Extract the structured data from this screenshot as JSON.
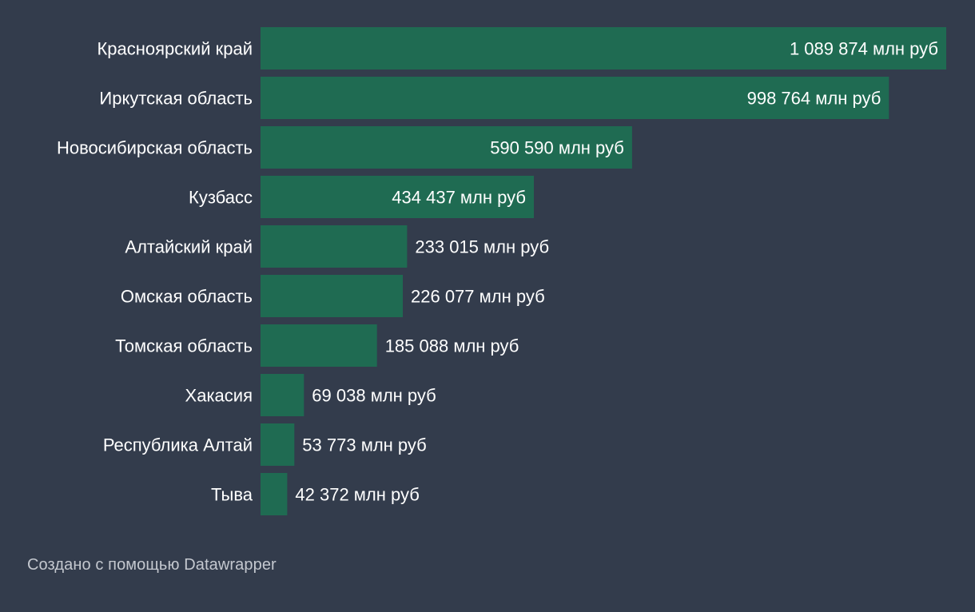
{
  "chart_data": {
    "type": "bar",
    "orientation": "horizontal",
    "categories": [
      "Красноярский край",
      "Иркутская область",
      "Новосибирская область",
      "Кузбасс",
      "Алтайский край",
      "Омская область",
      "Томская область",
      "Хакасия",
      "Республика Алтай",
      "Тыва"
    ],
    "values": [
      1089874,
      998764,
      590590,
      434437,
      233015,
      226077,
      185088,
      69038,
      53773,
      42372
    ],
    "value_labels": [
      "1 089 874 млн руб",
      "998 764 млн руб",
      "590 590 млн руб",
      "434 437 млн руб",
      "233 015 млн руб",
      "226 077 млн руб",
      "185 088 млн руб",
      "69 038 млн руб",
      "53 773 млн руб",
      "42 372 млн руб"
    ],
    "bar_color": "#1f6b52",
    "grid": false,
    "legend": "none"
  },
  "footer": {
    "credit": "Создано с помощью Datawrapper"
  }
}
